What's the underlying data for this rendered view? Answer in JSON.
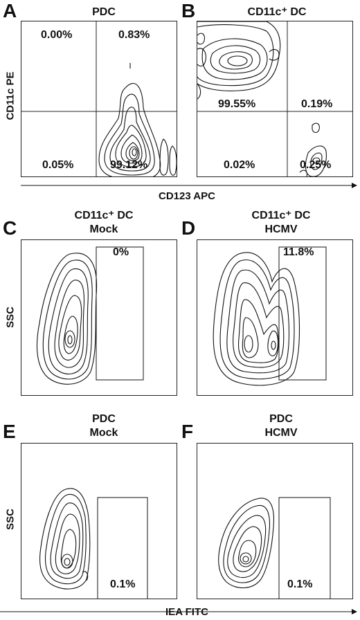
{
  "figure": {
    "panels": [
      {
        "letter": "A",
        "title_lines": [
          "PDC"
        ],
        "quadrant_values": [
          "0.00%",
          "0.83%",
          "0.05%",
          "99.12%"
        ]
      },
      {
        "letter": "B",
        "title_lines": [
          "CD11c⁺ DC"
        ],
        "quadrant_values": [
          "99.55%",
          "0.19%",
          "0.02%",
          "0.25%"
        ]
      },
      {
        "letter": "C",
        "title_lines": [
          "CD11c⁺ DC",
          "Mock"
        ],
        "gate_value": "0%"
      },
      {
        "letter": "D",
        "title_lines": [
          "CD11c⁺ DC",
          "HCMV"
        ],
        "gate_value": "11.8%"
      },
      {
        "letter": "E",
        "title_lines": [
          "PDC",
          "Mock"
        ],
        "gate_value": "0.1%"
      },
      {
        "letter": "F",
        "title_lines": [
          "PDC",
          "HCMV"
        ],
        "gate_value": "0.1%"
      }
    ],
    "axes": {
      "top_y": "CD11c PE",
      "top_x": "CD123 APC",
      "mid_y": "SSC",
      "bottom_y": "SSC",
      "bottom_x": "IEA FITC"
    }
  },
  "chart_data": [
    {
      "type": "contour",
      "panel": "A",
      "title": "PDC",
      "xlabel": "CD123 APC",
      "ylabel": "CD11c PE",
      "quadrants": {
        "upper_left": "0.00%",
        "upper_right": "0.83%",
        "lower_left": "0.05%",
        "lower_right": "99.12%"
      }
    },
    {
      "type": "contour",
      "panel": "B",
      "title": "CD11c⁺ DC",
      "xlabel": "CD123 APC",
      "ylabel": "CD11c PE",
      "quadrants": {
        "upper_left": "99.55%",
        "upper_right": "0.19%",
        "lower_left": "0.02%",
        "lower_right": "0.25%"
      }
    },
    {
      "type": "contour",
      "panel": "C",
      "title": "CD11c⁺ DC Mock",
      "ylabel": "SSC",
      "gate": "0%"
    },
    {
      "type": "contour",
      "panel": "D",
      "title": "CD11c⁺ DC HCMV",
      "ylabel": "SSC",
      "gate": "11.8%"
    },
    {
      "type": "contour",
      "panel": "E",
      "title": "PDC Mock",
      "xlabel": "IEA FITC",
      "ylabel": "SSC",
      "gate": "0.1%"
    },
    {
      "type": "contour",
      "panel": "F",
      "title": "PDC HCMV",
      "xlabel": "IEA FITC",
      "ylabel": "SSC",
      "gate": "0.1%"
    }
  ]
}
